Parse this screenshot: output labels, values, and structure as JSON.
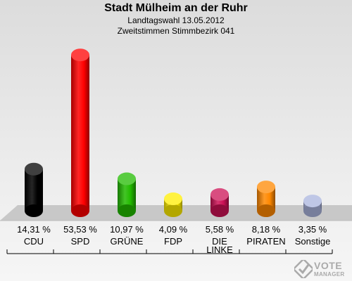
{
  "chart_data": {
    "type": "bar",
    "title": "Stadt Mülheim an der Ruhr",
    "subtitle_lines": [
      "Landtagswahl 13.05.2012",
      "Zweitstimmen Stimmbezirk 041"
    ],
    "ylim": [
      0,
      56
    ],
    "categories": [
      "CDU",
      "SPD",
      "GRÜNE",
      "FDP",
      "DIE LINKE",
      "PIRATEN",
      "Sonstige"
    ],
    "category_lines": [
      [
        "CDU"
      ],
      [
        "SPD"
      ],
      [
        "GRÜNE"
      ],
      [
        "FDP"
      ],
      [
        "DIE",
        "LINKE"
      ],
      [
        "PIRATEN"
      ],
      [
        "Sonstige"
      ]
    ],
    "values": [
      14.31,
      53.53,
      10.97,
      4.09,
      5.58,
      8.18,
      3.35
    ],
    "value_labels": [
      "14,31 %",
      "53,53 %",
      "10,97 %",
      "4,09 %",
      "5,58 %",
      "8,18 %",
      "3,35 %"
    ],
    "colors": [
      "#000000",
      "#ff0000",
      "#22bb00",
      "#ffee00",
      "#cc1155",
      "#ff8800",
      "#aab4dd"
    ]
  },
  "logo": {
    "line1": "VOTE",
    "line2": "MANAGER"
  }
}
